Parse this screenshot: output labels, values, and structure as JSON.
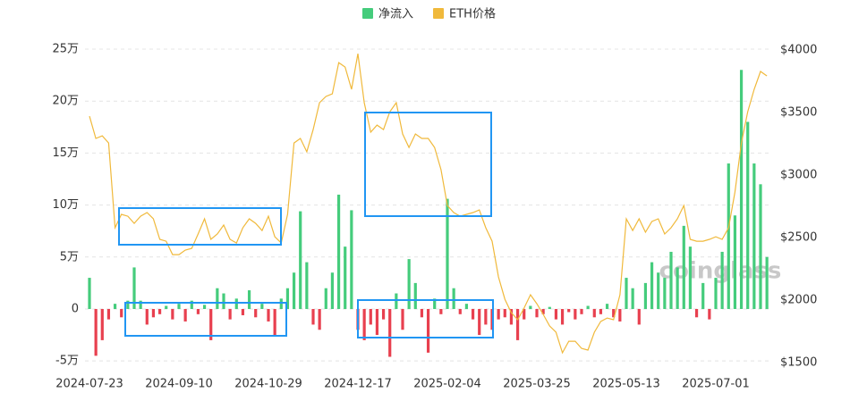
{
  "chart_data": {
    "type": "bar_line",
    "legend": "top",
    "watermark": "coinglass",
    "categories": [
      "2024-07-23",
      null,
      null,
      null,
      null,
      null,
      null,
      null,
      null,
      null,
      null,
      null,
      null,
      null,
      "2024-09-10",
      null,
      null,
      null,
      null,
      null,
      null,
      null,
      null,
      null,
      null,
      null,
      null,
      null,
      "2024-10-29",
      null,
      null,
      null,
      null,
      null,
      null,
      null,
      null,
      null,
      null,
      null,
      null,
      null,
      "2024-12-17",
      null,
      null,
      null,
      null,
      null,
      null,
      null,
      null,
      null,
      null,
      null,
      null,
      null,
      "2025-02-04",
      null,
      null,
      null,
      null,
      null,
      null,
      null,
      null,
      null,
      null,
      null,
      null,
      null,
      "2025-03-25",
      null,
      null,
      null,
      null,
      null,
      null,
      null,
      null,
      null,
      null,
      null,
      null,
      null,
      "2025-05-13",
      null,
      null,
      null,
      null,
      null,
      null,
      null,
      null,
      null,
      null,
      null,
      null,
      null,
      "2025-07-01",
      null,
      null,
      null,
      null,
      null,
      null,
      null,
      null
    ],
    "series": [
      {
        "name": "净流入",
        "color": "#45cc7c",
        "negative_color": "#e8404f",
        "values": [
          30000,
          -45000,
          -30000,
          -10000,
          5000,
          -8000,
          8000,
          40000,
          8000,
          -15000,
          -8000,
          -5000,
          3000,
          -10000,
          5000,
          -12000,
          8000,
          -5000,
          4000,
          -30000,
          20000,
          15000,
          -10000,
          10000,
          -6000,
          18000,
          -8000,
          5000,
          -12000,
          -25000,
          10000,
          20000,
          35000,
          94000,
          45000,
          -15000,
          -20000,
          20000,
          35000,
          110000,
          60000,
          95000,
          -20000,
          -30000,
          -15000,
          -25000,
          -10000,
          -46000,
          15000,
          -20000,
          48000,
          25000,
          -8000,
          -42000,
          10000,
          -5000,
          106000,
          20000,
          -5000,
          5000,
          -10000,
          -25000,
          -15000,
          -20000,
          -10000,
          -8000,
          -15000,
          -30000,
          -10000,
          3000,
          -8000,
          -5000,
          2000,
          -10000,
          -15000,
          -3000,
          -10000,
          -5000,
          3000,
          -8000,
          -5000,
          5000,
          -8000,
          -12000,
          30000,
          20000,
          -15000,
          25000,
          45000,
          35000,
          30000,
          55000,
          40000,
          80000,
          60000,
          -8000,
          25000,
          -10000,
          30000,
          55000,
          140000,
          90000,
          230000,
          180000,
          140000,
          120000,
          50000
        ]
      },
      {
        "name": "ETH价格",
        "color": "#f0b93b",
        "axis": "y2",
        "values": [
          3471,
          3293,
          3314,
          3257,
          2579,
          2686,
          2671,
          2614,
          2671,
          2700,
          2650,
          2486,
          2471,
          2364,
          2364,
          2400,
          2414,
          2529,
          2650,
          2486,
          2529,
          2600,
          2486,
          2457,
          2579,
          2650,
          2614,
          2557,
          2671,
          2507,
          2457,
          2686,
          3257,
          3293,
          3186,
          3364,
          3579,
          3629,
          3650,
          3900,
          3864,
          3686,
          3971,
          3579,
          3343,
          3400,
          3364,
          3507,
          3579,
          3329,
          3221,
          3329,
          3293,
          3293,
          3221,
          3043,
          2757,
          2700,
          2671,
          2686,
          2700,
          2721,
          2579,
          2471,
          2186,
          2007,
          1900,
          1843,
          1936,
          2043,
          1971,
          1886,
          1793,
          1743,
          1579,
          1671,
          1671,
          1614,
          1600,
          1743,
          1829,
          1857,
          1843,
          2043,
          2650,
          2557,
          2650,
          2543,
          2629,
          2650,
          2529,
          2579,
          2650,
          2757,
          2486,
          2471,
          2471,
          2486,
          2507,
          2486,
          2579,
          2864,
          3257,
          3507,
          3686,
          3829,
          3793
        ]
      }
    ],
    "ylim": [
      -59300,
      258600
    ],
    "yticks": [
      {
        "value": -50000,
        "label": "-5万"
      },
      0,
      {
        "value": 50000,
        "label": "5万"
      },
      {
        "value": 100000,
        "label": "10万"
      },
      {
        "value": 150000,
        "label": "15万"
      },
      {
        "value": 200000,
        "label": "20万"
      },
      {
        "value": 250000,
        "label": "25万"
      }
    ],
    "y2lim": [
      1436,
      4079
    ],
    "y2ticks": [
      {
        "value": 1500,
        "label": "$1500"
      },
      {
        "value": 2000,
        "label": "$2000"
      },
      {
        "value": 2500,
        "label": "$2500"
      },
      {
        "value": 3000,
        "label": "$3000"
      },
      {
        "value": 3500,
        "label": "$3500"
      },
      {
        "value": 4000,
        "label": "$4000"
      }
    ],
    "grid": true
  }
}
